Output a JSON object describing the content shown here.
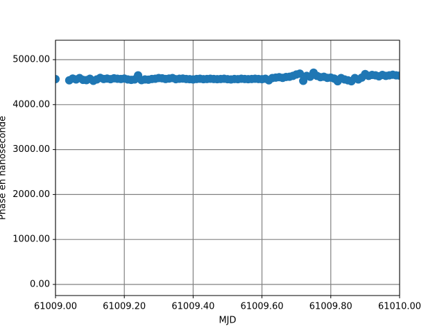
{
  "chart_data": {
    "type": "scatter",
    "xlabel": "MJD",
    "ylabel": "Phase en nanoseconde",
    "color": "#1f77b4",
    "grid": true,
    "xlim": [
      61009.0,
      61010.0
    ],
    "ylim": [
      -247,
      5432
    ],
    "xticks": [
      {
        "value": 61009.0,
        "label": "61009.00"
      },
      {
        "value": 61009.2,
        "label": "61009.20"
      },
      {
        "value": 61009.4,
        "label": "61009.40"
      },
      {
        "value": 61009.6,
        "label": "61009.60"
      },
      {
        "value": 61009.8,
        "label": "61009.80"
      },
      {
        "value": 61010.0,
        "label": "61010.00"
      }
    ],
    "yticks": [
      {
        "value": 0,
        "label": "0.00"
      },
      {
        "value": 1000,
        "label": "1000.00"
      },
      {
        "value": 2000,
        "label": "2000.00"
      },
      {
        "value": 3000,
        "label": "3000.00"
      },
      {
        "value": 4000,
        "label": "4000.00"
      },
      {
        "value": 5000,
        "label": "5000.00"
      }
    ],
    "x": [
      61009.0,
      61009.04,
      61009.05,
      61009.06,
      61009.07,
      61009.08,
      61009.09,
      61009.1,
      61009.11,
      61009.12,
      61009.13,
      61009.14,
      61009.15,
      61009.16,
      61009.17,
      61009.18,
      61009.19,
      61009.2,
      61009.21,
      61009.22,
      61009.23,
      61009.24,
      61009.25,
      61009.26,
      61009.27,
      61009.28,
      61009.29,
      61009.3,
      61009.31,
      61009.32,
      61009.33,
      61009.34,
      61009.35,
      61009.36,
      61009.37,
      61009.38,
      61009.39,
      61009.4,
      61009.41,
      61009.42,
      61009.43,
      61009.44,
      61009.45,
      61009.46,
      61009.47,
      61009.48,
      61009.49,
      61009.5,
      61009.51,
      61009.52,
      61009.53,
      61009.54,
      61009.55,
      61009.56,
      61009.57,
      61009.58,
      61009.59,
      61009.6,
      61009.61,
      61009.62,
      61009.63,
      61009.64,
      61009.65,
      61009.66,
      61009.67,
      61009.68,
      61009.69,
      61009.7,
      61009.71,
      61009.72,
      61009.73,
      61009.74,
      61009.75,
      61009.76,
      61009.77,
      61009.78,
      61009.79,
      61009.8,
      61009.81,
      61009.82,
      61009.83,
      61009.84,
      61009.85,
      61009.86,
      61009.87,
      61009.88,
      61009.89,
      61009.9,
      61009.91,
      61009.92,
      61009.93,
      61009.94,
      61009.95,
      61009.96,
      61009.97,
      61009.98,
      61009.99,
      61010.0
    ],
    "y": [
      4568,
      4540,
      4580,
      4560,
      4590,
      4550,
      4545,
      4575,
      4530,
      4560,
      4595,
      4570,
      4580,
      4565,
      4585,
      4575,
      4570,
      4580,
      4560,
      4550,
      4560,
      4650,
      4545,
      4560,
      4555,
      4570,
      4575,
      4590,
      4585,
      4570,
      4580,
      4590,
      4565,
      4575,
      4580,
      4570,
      4565,
      4560,
      4570,
      4575,
      4565,
      4570,
      4575,
      4570,
      4565,
      4570,
      4575,
      4565,
      4560,
      4570,
      4565,
      4575,
      4570,
      4565,
      4570,
      4575,
      4570,
      4565,
      4575,
      4540,
      4590,
      4600,
      4610,
      4595,
      4615,
      4620,
      4640,
      4670,
      4690,
      4530,
      4640,
      4620,
      4710,
      4640,
      4610,
      4620,
      4595,
      4600,
      4580,
      4520,
      4590,
      4560,
      4540,
      4520,
      4590,
      4560,
      4600,
      4680,
      4640,
      4660,
      4650,
      4630,
      4660,
      4640,
      4650,
      4665,
      4650,
      4645
    ]
  }
}
